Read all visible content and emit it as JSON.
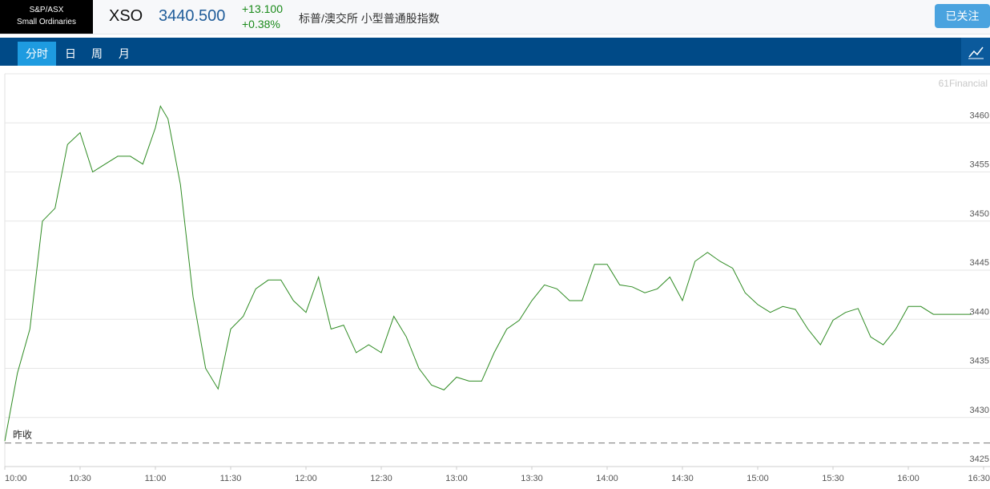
{
  "header": {
    "badge": [
      "S&P/ASX",
      "Small Ordinaries"
    ],
    "symbol": "XSO",
    "price": "3440.500",
    "change": "+13.100",
    "change_pct": "+0.38%",
    "name": "标普/澳交所 小型普通股指数",
    "follow_button": "已关注"
  },
  "tabs": [
    "分时",
    "日",
    "周",
    "月"
  ],
  "chart_data": {
    "type": "line",
    "watermark": "61Financial",
    "reference_label": "昨收",
    "reference_value": 3427.4,
    "x": [
      "10:00",
      "10:05",
      "10:10",
      "10:15",
      "10:20",
      "10:25",
      "10:30",
      "10:35",
      "10:40",
      "10:45",
      "10:50",
      "10:55",
      "11:00",
      "11:02",
      "11:05",
      "11:10",
      "11:15",
      "11:20",
      "11:25",
      "11:30",
      "11:35",
      "11:40",
      "11:45",
      "11:50",
      "11:55",
      "12:00",
      "12:05",
      "12:10",
      "12:15",
      "12:20",
      "12:25",
      "12:30",
      "12:35",
      "12:40",
      "12:45",
      "12:50",
      "12:55",
      "13:00",
      "13:05",
      "13:10",
      "13:15",
      "13:20",
      "13:25",
      "13:30",
      "13:35",
      "13:40",
      "13:45",
      "13:50",
      "13:55",
      "14:00",
      "14:05",
      "14:10",
      "14:15",
      "14:20",
      "14:25",
      "14:30",
      "14:35",
      "14:40",
      "14:45",
      "14:50",
      "14:55",
      "15:00",
      "15:05",
      "15:10",
      "15:15",
      "15:20",
      "15:25",
      "15:30",
      "15:35",
      "15:40",
      "15:45",
      "15:50",
      "15:55",
      "16:00",
      "16:05",
      "16:10",
      "16:15",
      "16:20",
      "16:25"
    ],
    "series": [
      {
        "name": "XSO",
        "color": "#2e8b22",
        "values": [
          3427.6,
          3434.5,
          3439,
          3450,
          3451.3,
          3457.8,
          3459,
          3455,
          3455.8,
          3456.6,
          3456.6,
          3455.8,
          3459.5,
          3461.7,
          3460.4,
          3453.7,
          3442.3,
          3435,
          3432.9,
          3439,
          3440.3,
          3443.1,
          3444,
          3444,
          3441.9,
          3440.7,
          3444.3,
          3439,
          3439.4,
          3436.6,
          3437.4,
          3436.6,
          3440.3,
          3438.2,
          3435,
          3433.3,
          3432.8,
          3434.1,
          3433.7,
          3433.7,
          3436.6,
          3439,
          3439.9,
          3441.9,
          3443.5,
          3443.1,
          3441.9,
          3441.9,
          3445.6,
          3445.6,
          3443.5,
          3443.3,
          3442.7,
          3443.1,
          3444.3,
          3441.9,
          3445.9,
          3446.8,
          3445.9,
          3445.2,
          3442.7,
          3441.5,
          3440.7,
          3441.3,
          3441,
          3439,
          3437.4,
          3439.9,
          3440.7,
          3441.1,
          3438.2,
          3437.4,
          3439,
          3441.3,
          3441.3,
          3440.5,
          3440.5,
          3440.5,
          3440.5
        ]
      }
    ],
    "ylim": [
      3425,
      3465
    ],
    "yticks": [
      3425,
      3430,
      3435,
      3440,
      3445,
      3450,
      3455,
      3460
    ],
    "xlim": [
      "10:00",
      "16:30"
    ],
    "xticks": [
      "10:00",
      "10:30",
      "11:00",
      "11:30",
      "12:00",
      "12:30",
      "13:00",
      "13:30",
      "14:00",
      "14:30",
      "15:00",
      "15:30",
      "16:00",
      "16:30"
    ],
    "grid": true
  }
}
